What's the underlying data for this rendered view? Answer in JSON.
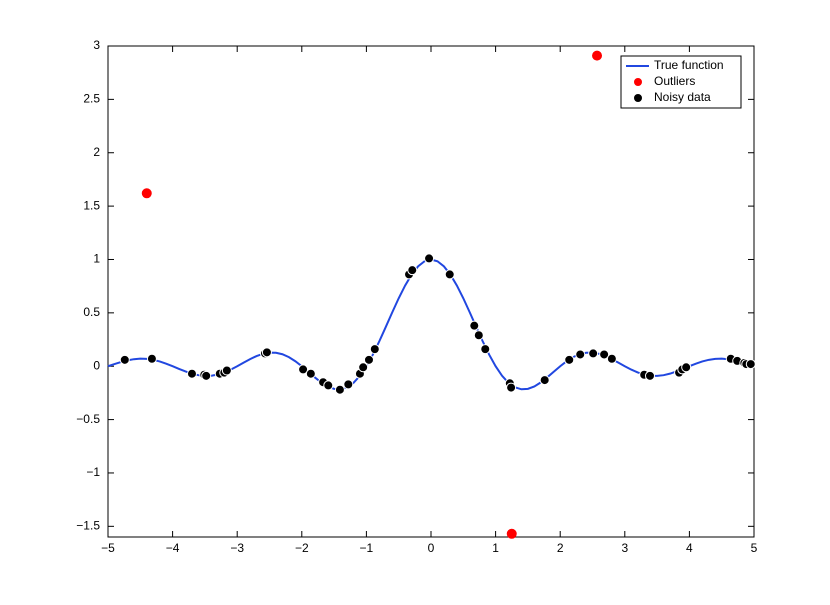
{
  "chart_data": {
    "type": "line",
    "xlim": [
      -5,
      5
    ],
    "ylim": [
      -1.6,
      3
    ],
    "xticks": [
      {
        "value": -5,
        "label": "−5"
      },
      {
        "value": -4,
        "label": "−4"
      },
      {
        "value": -3,
        "label": "−3"
      },
      {
        "value": -2,
        "label": "−2"
      },
      {
        "value": -1,
        "label": "−1"
      },
      0,
      1,
      2,
      3,
      4,
      5
    ],
    "yticks": [
      {
        "value": -1.5,
        "label": "−1.5"
      },
      {
        "value": -1,
        "label": "−1"
      },
      {
        "value": -0.5,
        "label": "−0.5"
      },
      0,
      0.5,
      1,
      1.5,
      2,
      2.5,
      3
    ],
    "legend": "upper right",
    "series": [
      {
        "name": "True function",
        "type": "line",
        "color": "#2147e0",
        "x": [
          -5,
          -4.9,
          -4.8,
          -4.7,
          -4.6,
          -4.5,
          -4.4,
          -4.3,
          -4.2,
          -4.1,
          -4,
          -3.9,
          -3.8,
          -3.7,
          -3.6,
          -3.5,
          -3.4,
          -3.3,
          -3.2,
          -3.1,
          -3,
          -2.9,
          -2.8,
          -2.7,
          -2.6,
          -2.5,
          -2.4,
          -2.3,
          -2.2,
          -2.1,
          -2,
          -1.9,
          -1.8,
          -1.7,
          -1.6,
          -1.5,
          -1.4,
          -1.3,
          -1.2,
          -1.1,
          -1,
          -0.9,
          -0.8,
          -0.7,
          -0.6,
          -0.5,
          -0.4,
          -0.3,
          -0.2,
          -0.1,
          0,
          0.1,
          0.2,
          0.3,
          0.4,
          0.5,
          0.6,
          0.7,
          0.8,
          0.9,
          1,
          1.1,
          1.2,
          1.3,
          1.4,
          1.5,
          1.6,
          1.7,
          1.8,
          1.9,
          2,
          2.1,
          2.2,
          2.3,
          2.4,
          2.5,
          2.6,
          2.7,
          2.8,
          2.9,
          3,
          3.1,
          3.2,
          3.3,
          3.4,
          3.5,
          3.6,
          3.7,
          3.8,
          3.9,
          4,
          4.1,
          4.2,
          4.3,
          4.4,
          4.5,
          4.6,
          4.7,
          4.8,
          4.9,
          5
        ],
        "values": [
          0,
          0.0201,
          0.039,
          0.0548,
          0.0658,
          0.0707,
          0.0688,
          0.0599,
          0.0445,
          0.024,
          0,
          -0.0252,
          -0.0492,
          -0.0696,
          -0.0841,
          -0.0909,
          -0.089,
          -0.078,
          -0.0585,
          -0.0317,
          0,
          0.0339,
          0.0668,
          0.0954,
          0.1164,
          0.1273,
          0.1261,
          0.112,
          0.085,
          0.0468,
          0,
          -0.0518,
          -0.1039,
          -0.1515,
          -0.1892,
          -0.2122,
          -0.2162,
          -0.1981,
          -0.1559,
          -0.0894,
          0,
          0.1093,
          0.2339,
          0.3679,
          0.5046,
          0.6366,
          0.7568,
          0.8584,
          0.9355,
          0.9836,
          1,
          0.9836,
          0.9355,
          0.8584,
          0.7568,
          0.6366,
          0.5046,
          0.3679,
          0.2339,
          0.1093,
          0,
          -0.0894,
          -0.1559,
          -0.1981,
          -0.2162,
          -0.2122,
          -0.1892,
          -0.1515,
          -0.1039,
          -0.0518,
          0,
          0.0468,
          0.085,
          0.112,
          0.1261,
          0.1273,
          0.1164,
          0.0954,
          0.0668,
          0.0339,
          0,
          -0.0317,
          -0.0585,
          -0.078,
          -0.089,
          -0.0909,
          -0.0841,
          -0.0696,
          -0.0492,
          -0.0252,
          0,
          0.024,
          0.0445,
          0.0599,
          0.0688,
          0.0707,
          0.0658,
          0.0548,
          0.039,
          0.0201,
          0
        ]
      },
      {
        "name": "Outliers",
        "type": "scatter",
        "color": "#ff0000",
        "x": [
          -4.4,
          2.57,
          1.25
        ],
        "values": [
          1.62,
          2.91,
          -1.57
        ]
      },
      {
        "name": "Noisy data",
        "type": "scatter",
        "color": "#000000",
        "x": [
          -4.74,
          -4.32,
          -3.7,
          -3.51,
          -3.48,
          -3.27,
          -3.2,
          -3.16,
          -2.57,
          -2.54,
          -1.98,
          -1.86,
          -1.67,
          -1.59,
          -1.41,
          -1.28,
          -1.1,
          -1.05,
          -0.96,
          -0.87,
          -0.34,
          -0.29,
          -0.03,
          0.29,
          0.67,
          0.74,
          0.84,
          1.22,
          1.24,
          1.76,
          2.14,
          2.31,
          2.51,
          2.68,
          2.8,
          3.3,
          3.39,
          3.84,
          3.89,
          3.95,
          4.64,
          4.74,
          4.85,
          4.88,
          4.95
        ],
        "values": [
          0.06,
          0.07,
          -0.07,
          -0.08,
          -0.09,
          -0.07,
          -0.06,
          -0.04,
          0.12,
          0.13,
          -0.03,
          -0.07,
          -0.15,
          -0.18,
          -0.22,
          -0.17,
          -0.07,
          -0.01,
          0.06,
          0.16,
          0.86,
          0.9,
          1.01,
          0.86,
          0.38,
          0.29,
          0.16,
          -0.16,
          -0.2,
          -0.13,
          0.06,
          0.11,
          0.12,
          0.11,
          0.07,
          -0.08,
          -0.09,
          -0.06,
          -0.03,
          -0.01,
          0.07,
          0.05,
          0.03,
          0.02,
          0.02
        ]
      }
    ]
  }
}
